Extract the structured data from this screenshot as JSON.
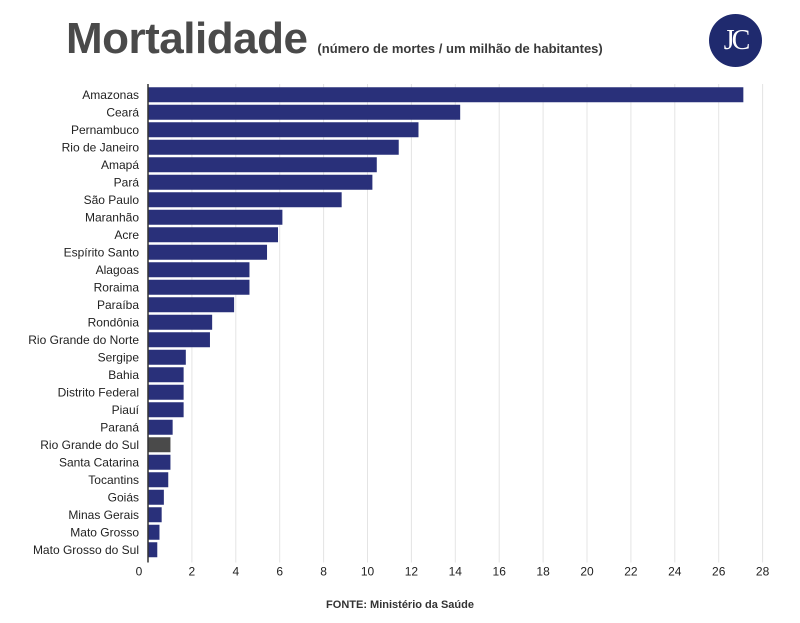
{
  "header": {
    "title": "Mortalidade",
    "subtitle": "(número de mortes / um milhão de habitantes)",
    "logo_text": "JC"
  },
  "source": "FONTE: Ministério da Saúde",
  "colors": {
    "bar": "#29307a",
    "highlight": "#4a4a4a",
    "grid": "#e4e4e4",
    "axis": "#333333",
    "logo_bg": "#1f2a6e"
  },
  "chart_data": {
    "type": "bar",
    "orientation": "horizontal",
    "title": "Mortalidade",
    "subtitle": "(número de mortes / um milhão de habitantes)",
    "xlabel": "",
    "ylabel": "",
    "xlim": [
      0,
      28
    ],
    "xticks": [
      0,
      2,
      4,
      6,
      8,
      10,
      12,
      14,
      16,
      18,
      20,
      22,
      24,
      26,
      28
    ],
    "grid": true,
    "highlight_category": "Rio Grande do Sul",
    "categories": [
      "Amazonas",
      "Ceará",
      "Pernambuco",
      "Rio de Janeiro",
      "Amapá",
      "Pará",
      "São Paulo",
      "Maranhão",
      "Acre",
      "Espírito Santo",
      "Alagoas",
      "Roraima",
      "Paraíba",
      "Rondônia",
      "Rio Grande do Norte",
      "Sergipe",
      "Bahia",
      "Distrito Federal",
      "Piauí",
      "Paraná",
      "Rio Grande do Sul",
      "Santa Catarina",
      "Tocantins",
      "Goiás",
      "Minas Gerais",
      "Mato Grosso",
      "Mato Grosso do Sul"
    ],
    "values": [
      27.1,
      14.2,
      12.3,
      11.4,
      10.4,
      10.2,
      8.8,
      6.1,
      5.9,
      5.4,
      4.6,
      4.6,
      3.9,
      2.9,
      2.8,
      1.7,
      1.6,
      1.6,
      1.6,
      1.1,
      1.0,
      1.0,
      0.9,
      0.7,
      0.6,
      0.5,
      0.4
    ]
  }
}
